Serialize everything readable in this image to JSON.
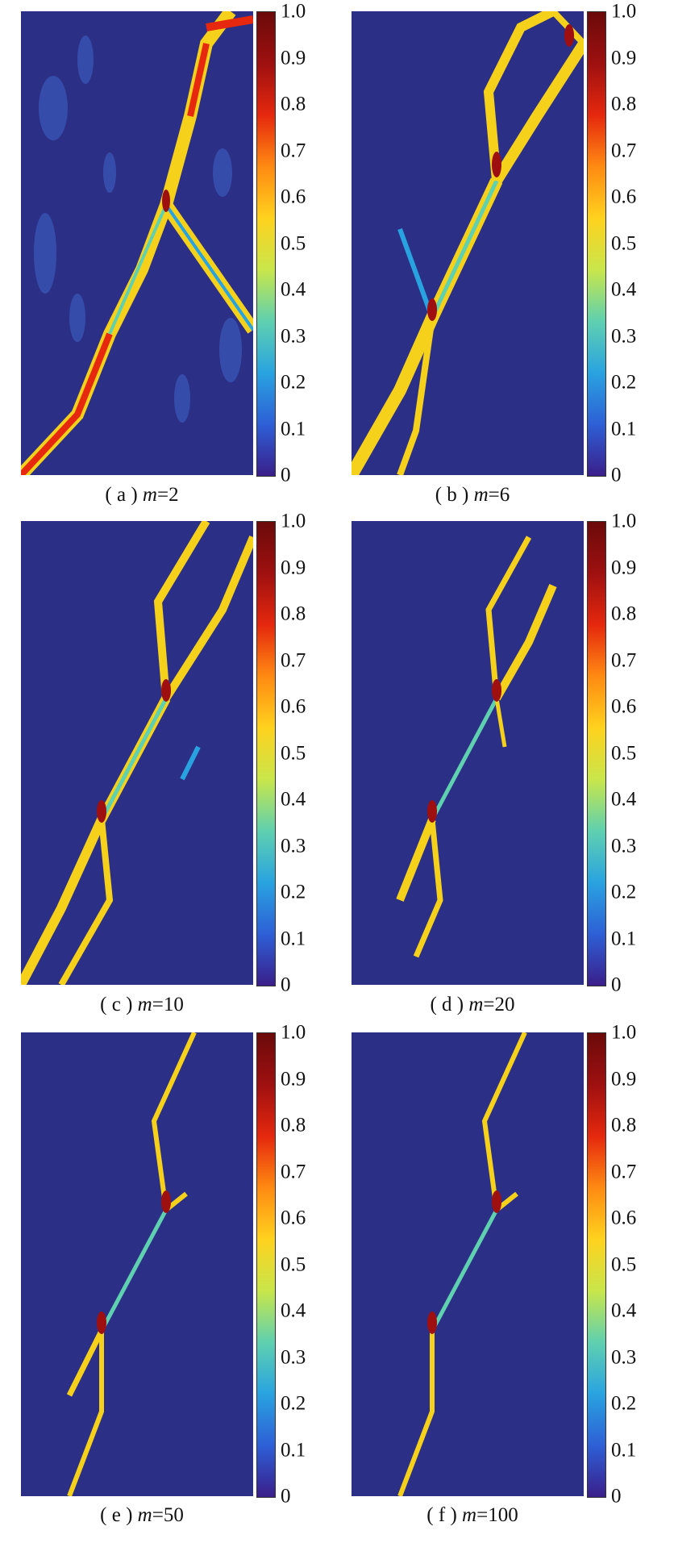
{
  "figure": {
    "colorbar_ticks": [
      "1.0",
      "0.9",
      "0.8",
      "0.7",
      "0.6",
      "0.5",
      "0.4",
      "0.3",
      "0.2",
      "0.1",
      "0"
    ],
    "colormap": [
      "#3a1f8a",
      "#2e5fd6",
      "#29a3e0",
      "#5fd0b0",
      "#c9e64a",
      "#ffd21e",
      "#ff8a12",
      "#e5280e",
      "#9e1010",
      "#6b0a0a"
    ],
    "background_color": "#2c2f86",
    "panels": [
      {
        "id": "a",
        "label": "( a )",
        "param": "m",
        "value": "=2"
      },
      {
        "id": "b",
        "label": "( b )",
        "param": "m",
        "value": "=6"
      },
      {
        "id": "c",
        "label": "( c )",
        "param": "m",
        "value": "=10"
      },
      {
        "id": "d",
        "label": "( d )",
        "param": "m",
        "value": "=20"
      },
      {
        "id": "e",
        "label": "( e )",
        "param": "m",
        "value": "=50"
      },
      {
        "id": "f",
        "label": "( f )",
        "param": "m",
        "value": "=100"
      }
    ]
  }
}
